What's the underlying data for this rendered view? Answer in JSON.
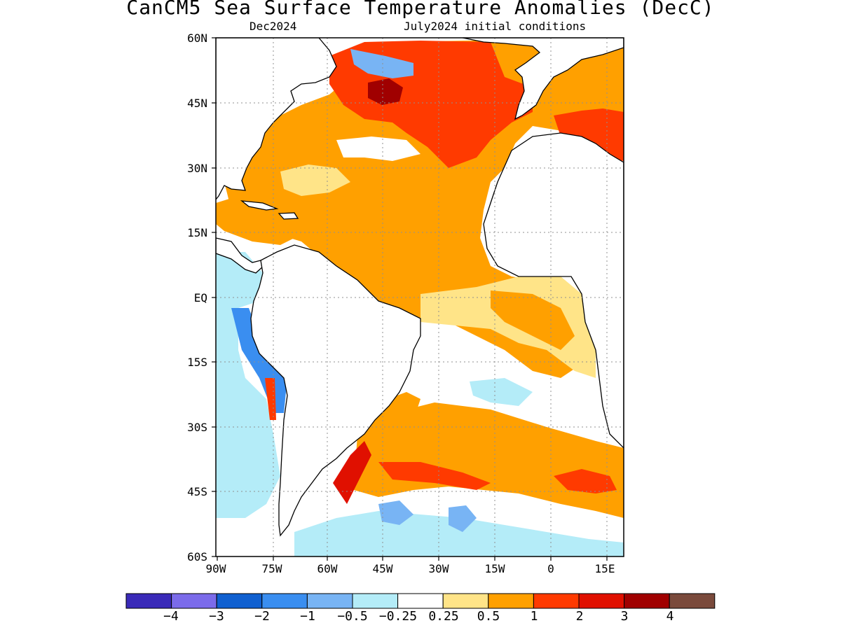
{
  "title": "CanCM5 Sea Surface Temperature Anomalies (DecC)",
  "subtitle_left": "Dec2024",
  "subtitle_right": "July2024 initial conditions",
  "lat_labels": [
    "60N",
    "45N",
    "30N",
    "15N",
    "EQ",
    "15S",
    "30S",
    "45S",
    "60S"
  ],
  "lon_labels": [
    "90W",
    "75W",
    "60W",
    "45W",
    "30W",
    "15W",
    "0",
    "15E"
  ],
  "colorbar": {
    "colors": [
      "#3a2ab8",
      "#7b6bea",
      "#1060d0",
      "#3a8ef0",
      "#78b4f4",
      "#b4ecf8",
      "#ffffff",
      "#ffe488",
      "#ffa000",
      "#ff3a00",
      "#e01000",
      "#a00000",
      "#7a4a3c"
    ],
    "labels": [
      "−4",
      "−3",
      "−2",
      "−1",
      "−0.5",
      "−0.25",
      "0.25",
      "0.5",
      "1",
      "2",
      "3",
      "4"
    ]
  },
  "colors": {
    "land": "#ffffff",
    "grid": "#909090",
    "coast": "#000000"
  }
}
